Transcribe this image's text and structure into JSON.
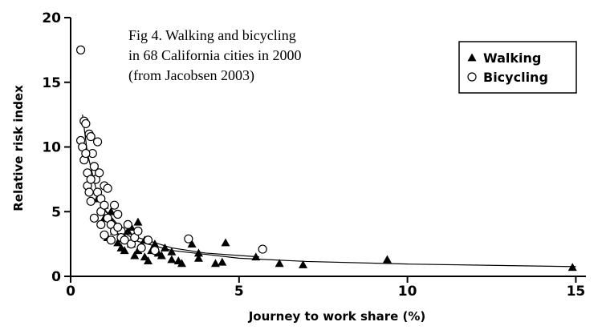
{
  "chart_data": {
    "type": "scatter",
    "title_lines": [
      "Fig 4.  Walking and bicycling",
      "in 68 California cities in 2000",
      "(from Jacobsen 2003)"
    ],
    "x_label": "Journey to work share (%)",
    "y_label": "Relative risk index",
    "xlim": [
      0,
      15.3
    ],
    "ylim": [
      0,
      20
    ],
    "xticks": [
      0,
      5,
      10,
      15
    ],
    "yticks": [
      0,
      5,
      10,
      15,
      20
    ],
    "legend": "upper right",
    "series": [
      {
        "name": "Walking",
        "color": "#000000",
        "marker": "triangle",
        "x": [
          1.0,
          1.2,
          1.3,
          1.5,
          1.6,
          1.7,
          1.8,
          2.0,
          2.0,
          2.2,
          2.2,
          2.4,
          2.5,
          2.6,
          2.8,
          3.0,
          3.2,
          3.3,
          3.6,
          3.8,
          3.8,
          4.3,
          4.5,
          4.6,
          5.5,
          6.2,
          6.9,
          9.4,
          14.9,
          1.4,
          1.8,
          2.1,
          2.3,
          1.1,
          0.8,
          1.0,
          2.7,
          3.0,
          1.6,
          1.9
        ],
        "values": [
          4.5,
          5.0,
          3.5,
          2.2,
          3.0,
          3.5,
          2.5,
          4.2,
          2.0,
          2.8,
          1.5,
          2.0,
          2.5,
          1.8,
          2.2,
          1.3,
          1.2,
          1.0,
          2.5,
          1.8,
          1.4,
          1.0,
          1.1,
          2.6,
          1.5,
          1.0,
          0.9,
          1.3,
          0.7,
          2.6,
          3.8,
          2.4,
          1.2,
          3.0,
          6.0,
          5.5,
          1.6,
          1.9,
          2.0,
          1.6
        ]
      },
      {
        "name": "Bicycling",
        "color": "#000000",
        "marker": "circle",
        "x": [
          0.3,
          0.4,
          0.45,
          0.3,
          0.35,
          0.4,
          0.5,
          0.5,
          0.55,
          0.6,
          0.65,
          0.7,
          0.75,
          0.8,
          0.8,
          0.85,
          0.9,
          0.9,
          1.0,
          1.0,
          1.1,
          1.1,
          1.2,
          1.3,
          1.3,
          1.4,
          1.5,
          1.5,
          1.6,
          1.7,
          1.8,
          1.9,
          2.0,
          2.1,
          2.3,
          2.5,
          3.5,
          5.7,
          0.6,
          0.7,
          1.0,
          1.2,
          0.9,
          0.45,
          0.55,
          0.6,
          1.4
        ],
        "values": [
          17.5,
          12.0,
          11.8,
          10.5,
          10.0,
          9.0,
          8.0,
          7.0,
          11.0,
          10.8,
          9.5,
          8.5,
          7.5,
          10.4,
          6.5,
          8.0,
          6.0,
          5.0,
          7.0,
          5.5,
          4.5,
          6.8,
          4.0,
          5.5,
          3.5,
          4.8,
          3.5,
          3.0,
          2.8,
          4.0,
          2.5,
          3.0,
          3.5,
          2.2,
          2.8,
          2.0,
          2.9,
          2.1,
          5.8,
          4.5,
          3.2,
          2.8,
          4.0,
          9.5,
          6.5,
          7.5,
          3.8
        ]
      }
    ],
    "trend_lines": [
      {
        "color": "#000000",
        "x": [
          0.35,
          0.5,
          0.75,
          1,
          1.5,
          2,
          3,
          4,
          5.6
        ],
        "values": [
          12.5,
          9.5,
          6.8,
          5.2,
          3.7,
          3.0,
          2.2,
          1.8,
          1.5
        ]
      },
      {
        "color": "#000000",
        "x": [
          0.9,
          1.5,
          2,
          3,
          5,
          7,
          10,
          15
        ],
        "values": [
          5.5,
          3.5,
          2.7,
          2.0,
          1.4,
          1.15,
          0.95,
          0.75
        ]
      }
    ]
  }
}
